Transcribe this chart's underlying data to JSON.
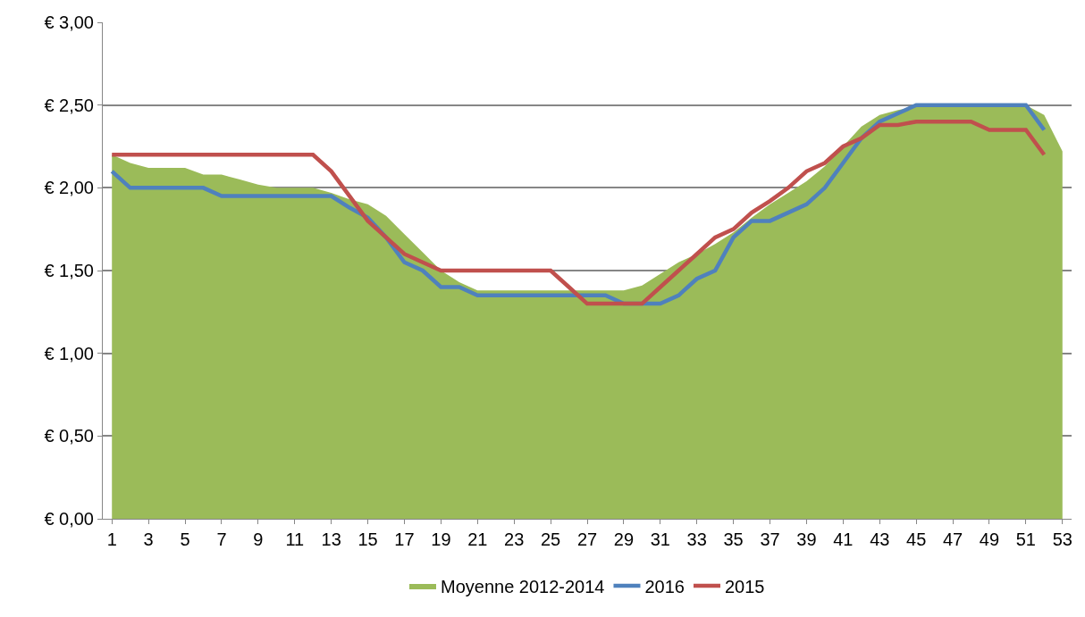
{
  "chart_data": {
    "type": "area",
    "x": [
      1,
      2,
      3,
      4,
      5,
      6,
      7,
      8,
      9,
      10,
      11,
      12,
      13,
      14,
      15,
      16,
      17,
      18,
      19,
      20,
      21,
      22,
      23,
      24,
      25,
      26,
      27,
      28,
      29,
      30,
      31,
      32,
      33,
      34,
      35,
      36,
      37,
      38,
      39,
      40,
      41,
      42,
      43,
      44,
      45,
      46,
      47,
      48,
      49,
      50,
      51,
      52,
      53
    ],
    "series": [
      {
        "name": "Moyenne 2012-2014",
        "color": "#9bbb59",
        "values": [
          2.2,
          2.15,
          2.12,
          2.12,
          2.12,
          2.08,
          2.08,
          2.05,
          2.02,
          2.0,
          2.0,
          2.0,
          1.97,
          1.93,
          1.9,
          1.83,
          1.72,
          1.61,
          1.5,
          1.43,
          1.38,
          1.38,
          1.38,
          1.38,
          1.38,
          1.38,
          1.38,
          1.38,
          1.38,
          1.41,
          1.48,
          1.55,
          1.6,
          1.66,
          1.73,
          1.82,
          1.9,
          1.97,
          2.04,
          2.13,
          2.25,
          2.37,
          2.44,
          2.47,
          2.49,
          2.5,
          2.5,
          2.5,
          2.5,
          2.5,
          2.5,
          2.44,
          2.22
        ]
      },
      {
        "name": "2016",
        "type": "line",
        "color": "#4f81bd",
        "values": [
          2.1,
          2.0,
          2.0,
          2.0,
          2.0,
          2.0,
          1.95,
          1.95,
          1.95,
          1.95,
          1.95,
          1.95,
          1.95,
          1.88,
          1.82,
          1.7,
          1.55,
          1.5,
          1.4,
          1.4,
          1.35,
          1.35,
          1.35,
          1.35,
          1.35,
          1.35,
          1.35,
          1.35,
          1.3,
          1.3,
          1.3,
          1.35,
          1.45,
          1.5,
          1.7,
          1.8,
          1.8,
          1.85,
          1.9,
          2.0,
          2.15,
          2.3,
          2.4,
          2.45,
          2.5,
          2.5,
          2.5,
          2.5,
          2.5,
          2.5,
          2.5,
          2.35,
          null
        ]
      },
      {
        "name": "2015",
        "type": "line",
        "color": "#c0504d",
        "values": [
          2.2,
          2.2,
          2.2,
          2.2,
          2.2,
          2.2,
          2.2,
          2.2,
          2.2,
          2.2,
          2.2,
          2.2,
          2.1,
          1.95,
          1.8,
          1.7,
          1.6,
          1.55,
          1.5,
          1.5,
          1.5,
          1.5,
          1.5,
          1.5,
          1.5,
          1.4,
          1.3,
          1.3,
          1.3,
          1.3,
          1.4,
          1.5,
          1.6,
          1.7,
          1.75,
          1.85,
          1.92,
          2.0,
          2.1,
          2.15,
          2.25,
          2.3,
          2.38,
          2.38,
          2.4,
          2.4,
          2.4,
          2.4,
          2.35,
          2.35,
          2.35,
          2.2,
          null
        ]
      }
    ],
    "xlim": [
      0.5,
      53.5
    ],
    "xticks": [
      1,
      3,
      5,
      7,
      9,
      11,
      13,
      15,
      17,
      19,
      21,
      23,
      25,
      27,
      29,
      31,
      33,
      35,
      37,
      39,
      41,
      43,
      45,
      47,
      49,
      51,
      53
    ],
    "ylim": [
      0,
      3
    ],
    "yticks": [
      {
        "value": 0,
        "label": "€ 0,00"
      },
      {
        "value": 0.5,
        "label": "€ 0,50"
      },
      {
        "value": 1,
        "label": "€ 1,00"
      },
      {
        "value": 1.5,
        "label": "€ 1,50"
      },
      {
        "value": 2,
        "label": "€ 2,00"
      },
      {
        "value": 2.5,
        "label": "€ 2,50"
      },
      {
        "value": 3,
        "label": "€ 3,00"
      }
    ],
    "grid": "y",
    "legend": "bottom",
    "marker": "none",
    "line_style": "solid"
  }
}
